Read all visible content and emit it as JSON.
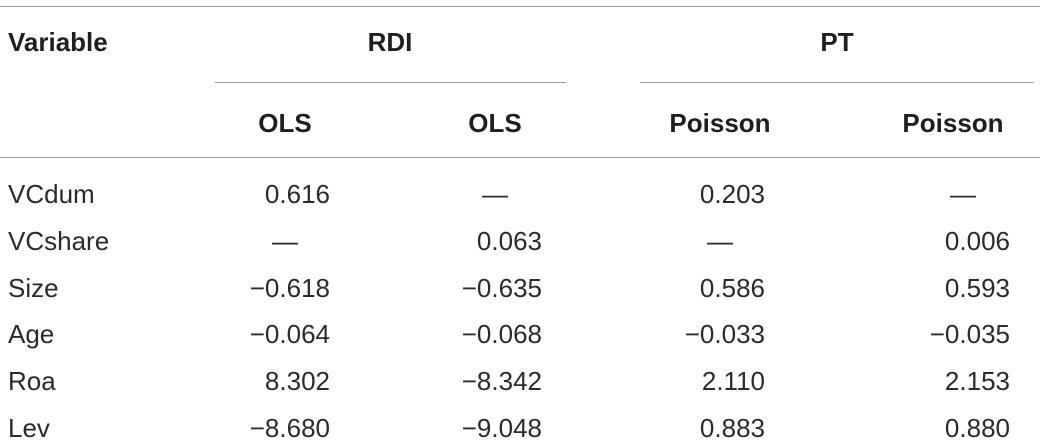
{
  "table": {
    "header": {
      "variable_label": "Variable",
      "groups": [
        "RDI",
        "PT"
      ],
      "methods": [
        "OLS",
        "OLS",
        "Poisson",
        "Poisson"
      ]
    },
    "rows": [
      {
        "variable": "VCdum",
        "values": [
          "0.616",
          "—",
          "0.203",
          "—"
        ]
      },
      {
        "variable": "VCshare",
        "values": [
          "—",
          "0.063",
          "—",
          "0.006"
        ]
      },
      {
        "variable": "Size",
        "values": [
          "−0.618",
          "−0.635",
          "0.586",
          "0.593"
        ]
      },
      {
        "variable": "Age",
        "values": [
          "−0.064",
          "−0.068",
          "−0.033",
          "−0.035"
        ]
      },
      {
        "variable": "Roa",
        "values": [
          "8.302",
          "−8.342",
          "2.110",
          "2.153"
        ]
      },
      {
        "variable": "Lev",
        "values": [
          "−8.680",
          "−9.048",
          "0.883",
          "0.880"
        ]
      }
    ]
  }
}
